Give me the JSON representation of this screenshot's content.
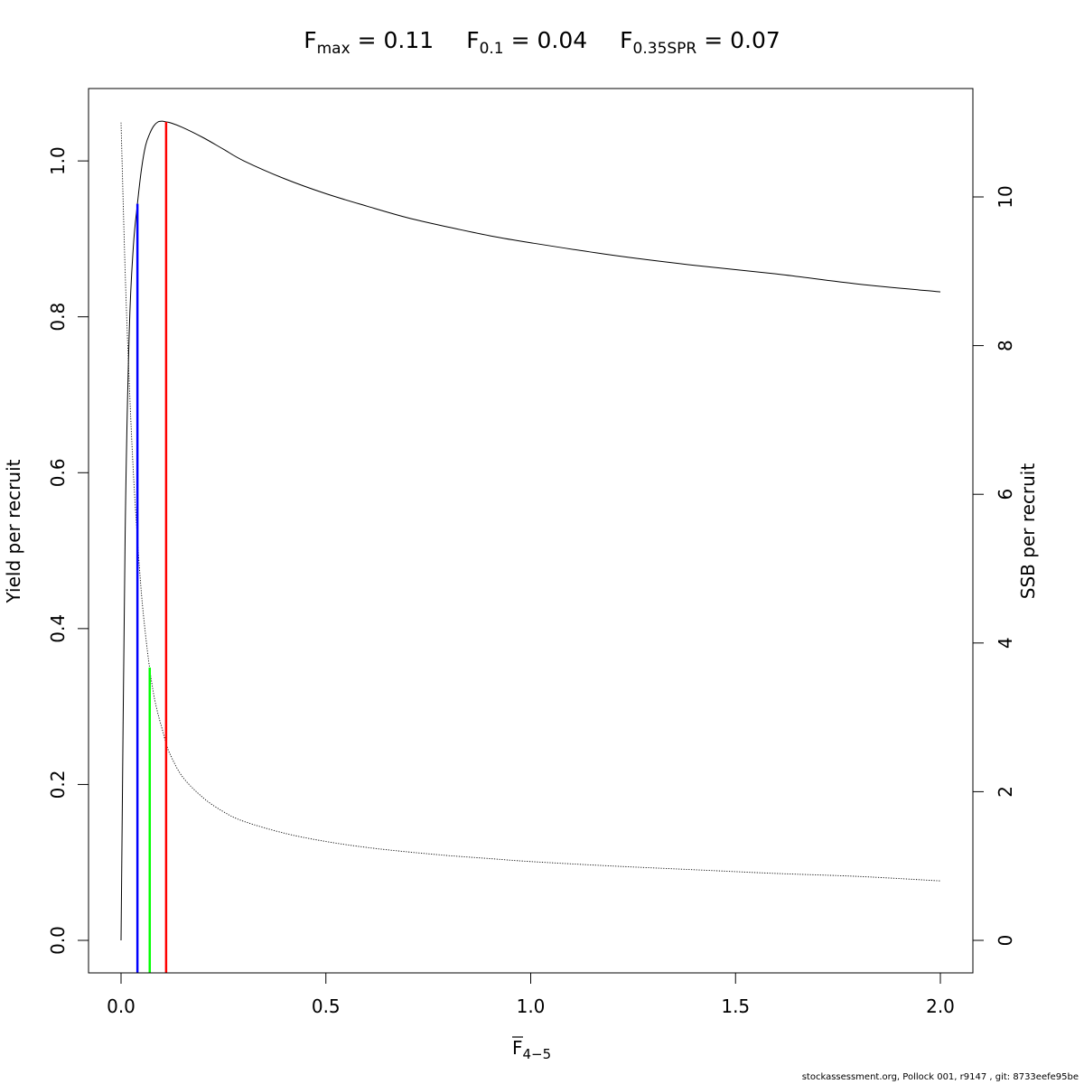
{
  "title": {
    "items": [
      {
        "symbol": "F",
        "subscript": "max",
        "equals": " = 0.11"
      },
      {
        "symbol": "F",
        "subscript": "0.1",
        "equals": " = 0.04"
      },
      {
        "symbol": "F",
        "subscript": "0.35SPR",
        "equals": " = 0.07"
      }
    ]
  },
  "footer": "stockassessment.org, Pollock  001, r9147 , git: 8733eefe95be",
  "colors": {
    "fmax": "#ff0000",
    "f01": "#0000ff",
    "f035spr": "#00ff00",
    "curve": "#000000"
  },
  "chart_data": {
    "type": "line",
    "xlabel_main": "F",
    "xlabel_sub": "4−5",
    "ylabel_left": "Yield per recruit",
    "ylabel_right": "SSB per recruit",
    "xlim": [
      0,
      2
    ],
    "ylim_left": [
      0,
      1.05
    ],
    "ylim_right": [
      0,
      11
    ],
    "x_ticks": [
      "0.0",
      "0.5",
      "1.0",
      "1.5",
      "2.0"
    ],
    "y_left_ticks": [
      "0.0",
      "0.2",
      "0.4",
      "0.6",
      "0.8",
      "1.0"
    ],
    "y_right_ticks": [
      "0",
      "2",
      "4",
      "6",
      "8",
      "10"
    ],
    "series": [
      {
        "axis": "left",
        "style": "solid",
        "x": [
          0,
          0.01,
          0.02,
          0.03,
          0.04,
          0.05,
          0.06,
          0.07,
          0.08,
          0.09,
          0.1,
          0.11,
          0.12,
          0.15,
          0.2,
          0.25,
          0.3,
          0.4,
          0.5,
          0.6,
          0.7,
          0.8,
          0.9,
          1.0,
          1.2,
          1.4,
          1.6,
          1.8,
          2.0
        ],
        "y": [
          0,
          0.52,
          0.78,
          0.89,
          0.945,
          0.99,
          1.02,
          1.035,
          1.045,
          1.05,
          1.051,
          1.05,
          1.049,
          1.043,
          1.03,
          1.015,
          1.0,
          0.977,
          0.958,
          0.942,
          0.927,
          0.915,
          0.904,
          0.895,
          0.879,
          0.866,
          0.855,
          0.842,
          0.832
        ]
      },
      {
        "axis": "right",
        "style": "dotted",
        "x": [
          0,
          0.01,
          0.02,
          0.03,
          0.04,
          0.05,
          0.06,
          0.07,
          0.08,
          0.09,
          0.1,
          0.11,
          0.12,
          0.15,
          0.2,
          0.25,
          0.3,
          0.4,
          0.5,
          0.6,
          0.7,
          0.8,
          0.9,
          1.0,
          1.2,
          1.4,
          1.6,
          1.8,
          2.0
        ],
        "y": [
          11.0,
          9.0,
          7.5,
          6.3,
          5.4,
          4.65,
          4.1,
          3.65,
          3.3,
          3.05,
          2.85,
          2.65,
          2.5,
          2.2,
          1.92,
          1.73,
          1.6,
          1.44,
          1.33,
          1.25,
          1.19,
          1.14,
          1.1,
          1.06,
          1.0,
          0.95,
          0.9,
          0.86,
          0.8
        ]
      }
    ],
    "reference_lines": [
      {
        "name": "F0.1",
        "x": 0.04,
        "y_top": 0.945,
        "axis": "left",
        "color_key": "f01"
      },
      {
        "name": "F0.35SPR",
        "x": 0.07,
        "y_top": 3.67,
        "axis": "right",
        "color_key": "f035spr"
      },
      {
        "name": "Fmax",
        "x": 0.11,
        "y_top": 1.05,
        "axis": "left",
        "color_key": "fmax"
      }
    ]
  }
}
